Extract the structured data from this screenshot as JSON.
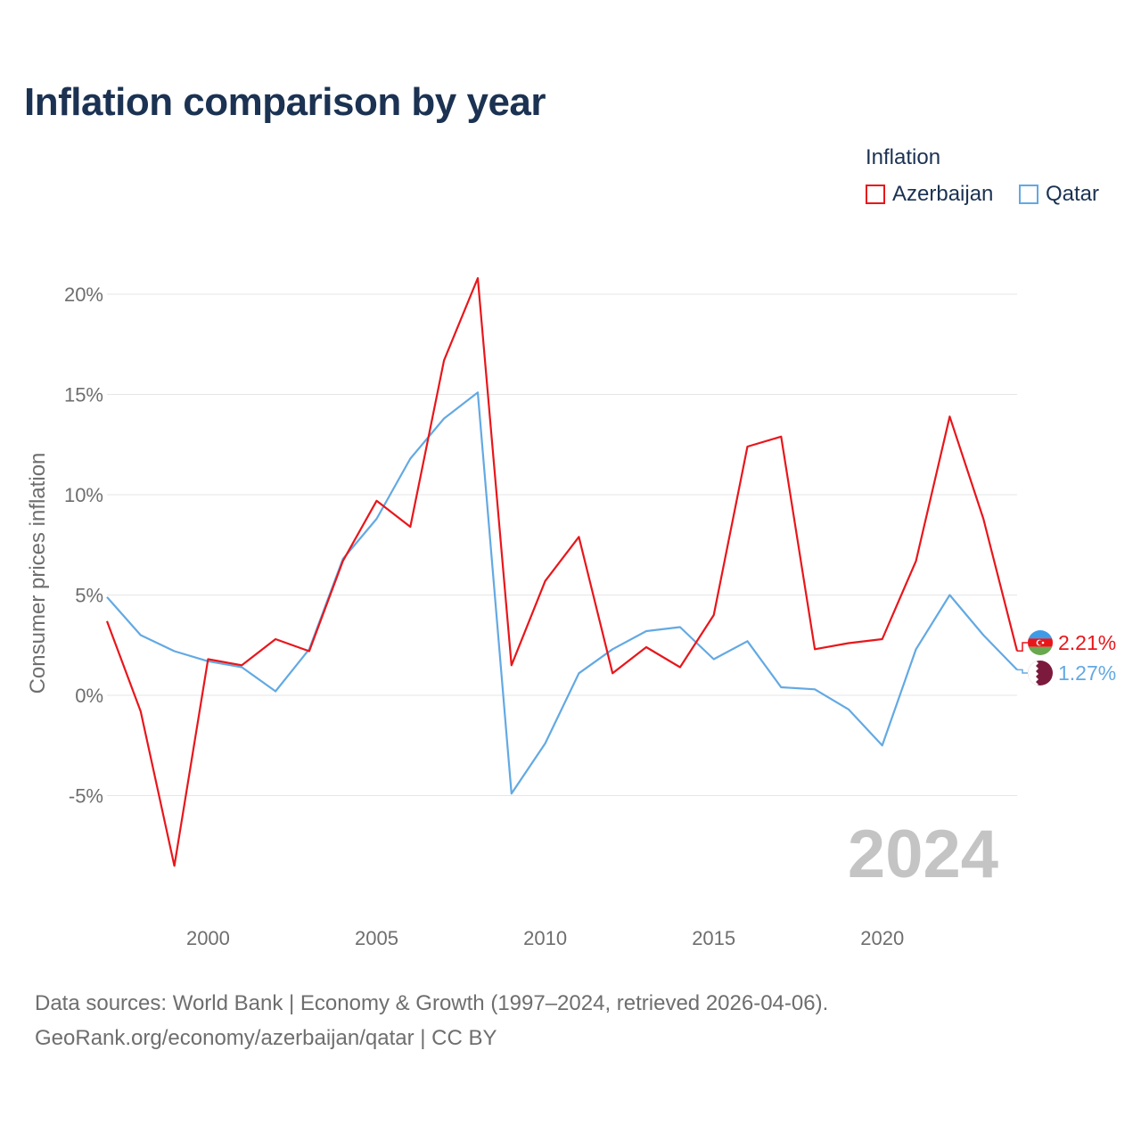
{
  "chart_data": {
    "type": "line",
    "title": "Inflation comparison by year",
    "legend_title": "Inflation",
    "ylabel": "Consumer prices inflation",
    "xlabel": "",
    "xlim": [
      1997,
      2024
    ],
    "ylim": [
      -10,
      22
    ],
    "y_ticks": [
      -5,
      0,
      5,
      10,
      15,
      20
    ],
    "y_tick_labels": [
      "-5%",
      "0%",
      "5%",
      "10%",
      "15%",
      "20%"
    ],
    "x_ticks": [
      2000,
      2005,
      2010,
      2015,
      2020
    ],
    "x_tick_labels": [
      "2000",
      "2005",
      "2010",
      "2015",
      "2020"
    ],
    "grid": true,
    "legend_position": "top-right",
    "year_watermark": "2024",
    "x": [
      1997,
      1998,
      1999,
      2000,
      2001,
      2002,
      2003,
      2004,
      2005,
      2006,
      2007,
      2008,
      2009,
      2010,
      2011,
      2012,
      2013,
      2014,
      2015,
      2016,
      2017,
      2018,
      2019,
      2020,
      2021,
      2022,
      2023,
      2024
    ],
    "series": [
      {
        "name": "Azerbaijan",
        "color": "#e8161b",
        "end_label": "2.21%",
        "flag_icon": "azerbaijan-flag-icon",
        "values": [
          3.7,
          -0.8,
          -8.5,
          1.8,
          1.5,
          2.8,
          2.2,
          6.7,
          9.7,
          8.4,
          16.7,
          20.8,
          1.5,
          5.7,
          7.9,
          1.1,
          2.4,
          1.4,
          4.0,
          12.4,
          12.9,
          2.3,
          2.6,
          2.8,
          6.7,
          13.9,
          8.8,
          2.21
        ]
      },
      {
        "name": "Qatar",
        "color": "#63a9e3",
        "end_label": "1.27%",
        "flag_icon": "qatar-flag-icon",
        "values": [
          4.9,
          3.0,
          2.2,
          1.7,
          1.4,
          0.2,
          2.3,
          6.8,
          8.8,
          11.8,
          13.8,
          15.1,
          -4.9,
          -2.4,
          1.1,
          2.3,
          3.2,
          3.4,
          1.8,
          2.7,
          0.4,
          0.3,
          -0.7,
          -2.5,
          2.3,
          5.0,
          3.0,
          1.27
        ]
      }
    ]
  },
  "source": {
    "line1": "Data sources: World Bank | Economy & Growth (1997–2024, retrieved 2026-04-06).",
    "line2": "GeoRank.org/economy/azerbaijan/qatar | CC BY"
  }
}
